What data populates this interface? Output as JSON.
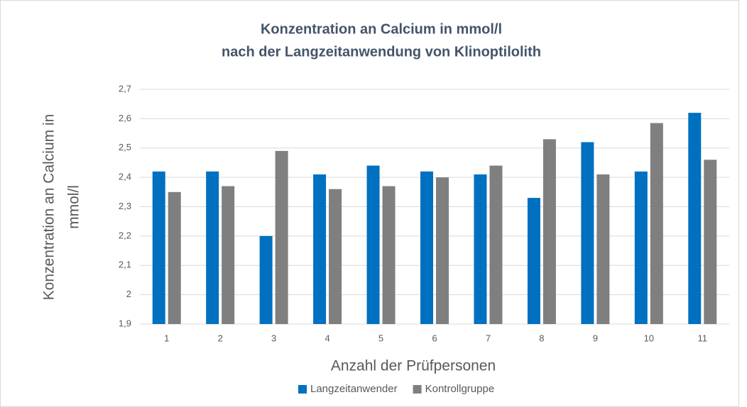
{
  "chart_data": {
    "type": "bar",
    "title": [
      "Konzentration an Calcium in mmol/l",
      "nach der Langzeitanwendung von Klinoptilolith"
    ],
    "xlabel": "Anzahl der Prüfpersonen",
    "ylabel": [
      "Konzentration an Calcium in",
      "mmol/l"
    ],
    "categories": [
      "1",
      "2",
      "3",
      "4",
      "5",
      "6",
      "7",
      "8",
      "9",
      "10",
      "11"
    ],
    "series": [
      {
        "name": "Langzeitanwender",
        "color": "#0070c0",
        "values": [
          2.42,
          2.42,
          2.2,
          2.41,
          2.44,
          2.42,
          2.41,
          2.33,
          2.52,
          2.42,
          2.62
        ]
      },
      {
        "name": "Kontrollgruppe",
        "color": "#7f7f7f",
        "values": [
          2.35,
          2.37,
          2.49,
          2.36,
          2.37,
          2.4,
          2.44,
          2.53,
          2.41,
          2.585,
          2.46
        ]
      }
    ],
    "ylim": [
      1.9,
      2.7
    ],
    "yticks": [
      {
        "value": 1.9,
        "label": "1,9"
      },
      2,
      {
        "value": 2.1,
        "label": "2,1"
      },
      {
        "value": 2.2,
        "label": "2,2"
      },
      {
        "value": 2.3,
        "label": "2,3"
      },
      {
        "value": 2.4,
        "label": "2,4"
      },
      {
        "value": 2.5,
        "label": "2,5"
      },
      {
        "value": 2.6,
        "label": "2,6"
      },
      {
        "value": 2.7,
        "label": "2,7"
      }
    ],
    "grid": true,
    "legend": "bottom"
  }
}
